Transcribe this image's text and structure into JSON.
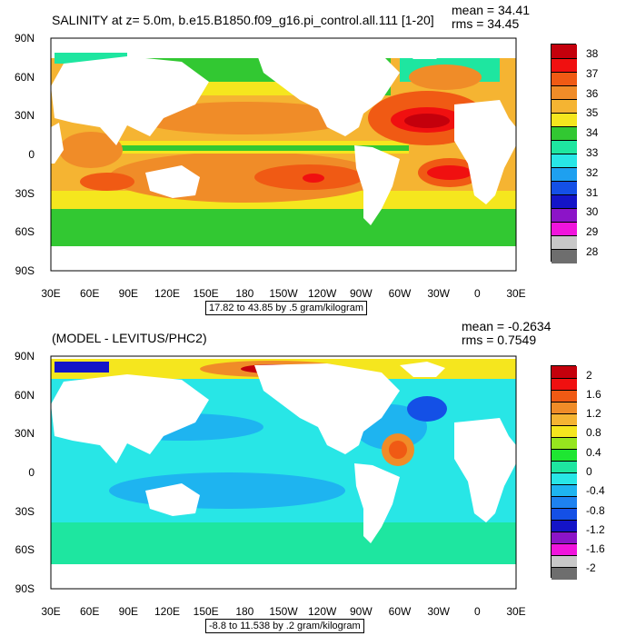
{
  "panels": [
    {
      "title": "SALINITY at z=   5.0m, b.e15.B1850.f09_g16.pi_control.all.111 [1-20]",
      "stats": [
        "mean = 34.41",
        "rms = 34.45"
      ],
      "range_label": "17.82 to 43.85 by .5 gram/kilogram",
      "colorbar_labels": [
        "38",
        "37",
        "36",
        "35",
        "34",
        "33",
        "32",
        "31",
        "30",
        "29",
        "28"
      ],
      "colorbar_colors": [
        "#c4000c",
        "#f01010",
        "#f05a14",
        "#f08c28",
        "#f5b432",
        "#f5e61e",
        "#32c832",
        "#1ee6a0",
        "#28e6e6",
        "#1ea0f0",
        "#1450e6",
        "#1414c8",
        "#8c14c8",
        "#f014dc",
        "#c8c8c8",
        "#6e6e6e"
      ]
    },
    {
      "title": "(MODEL - LEVITUS/PHC2)",
      "stats": [
        "mean = -0.2634",
        "rms = 0.7549"
      ],
      "range_label": "-8.8 to 11.538 by .2 gram/kilogram",
      "colorbar_labels": [
        "2",
        "1.6",
        "1.2",
        "0.8",
        "0.4",
        "0",
        "-0.4",
        "-0.8",
        "-1.2",
        "-1.6",
        "-2"
      ],
      "colorbar_colors": [
        "#c4000c",
        "#f01010",
        "#f05a14",
        "#f08c28",
        "#f5b432",
        "#f5e61e",
        "#96e61e",
        "#1ee632",
        "#1ee6a0",
        "#28e6e6",
        "#1eb4f0",
        "#1e82f0",
        "#1450e6",
        "#1414c8",
        "#8c14c8",
        "#f014dc",
        "#c8c8c8",
        "#6e6e6e"
      ]
    }
  ],
  "lat_labels": [
    "90N",
    "60N",
    "30N",
    "0",
    "30S",
    "60S",
    "90S"
  ],
  "lon_labels": [
    "30E",
    "60E",
    "90E",
    "120E",
    "150E",
    "180",
    "150W",
    "120W",
    "90W",
    "60W",
    "30W",
    "0",
    "30E"
  ]
}
